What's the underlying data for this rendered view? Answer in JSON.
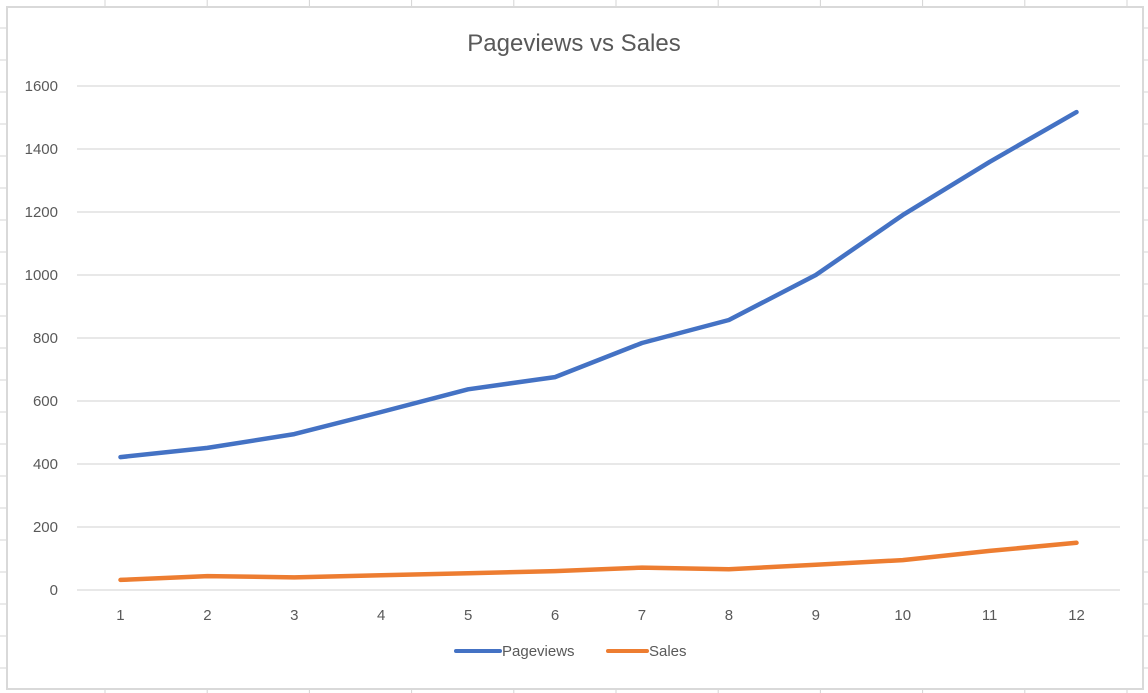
{
  "chart_data": {
    "type": "line",
    "title": "Pageviews vs Sales",
    "xlabel": "",
    "ylabel": "",
    "categories": [
      "1",
      "2",
      "3",
      "4",
      "5",
      "6",
      "7",
      "8",
      "9",
      "10",
      "11",
      "12"
    ],
    "series": [
      {
        "name": "Pageviews",
        "color": "#4472C4",
        "values": [
          422,
          451,
          495,
          565,
          637,
          676,
          784,
          857,
          1000,
          1190,
          1359,
          1517
        ]
      },
      {
        "name": "Sales",
        "color": "#ED7D31",
        "values": [
          32,
          44,
          40,
          47,
          53,
          60,
          71,
          66,
          80,
          95,
          124,
          150
        ]
      }
    ],
    "ylim": [
      0,
      1600
    ],
    "yticks": [
      0,
      200,
      400,
      600,
      800,
      1000,
      1200,
      1400,
      1600
    ],
    "grid": true,
    "legend_position": "bottom"
  },
  "chart": {
    "title": "Pageviews vs Sales",
    "legend": [
      {
        "label": "Pageviews",
        "color": "#4472C4"
      },
      {
        "label": "Sales",
        "color": "#ED7D31"
      }
    ],
    "gridline_color": "#d9d9d9",
    "text_color": "#595959"
  }
}
